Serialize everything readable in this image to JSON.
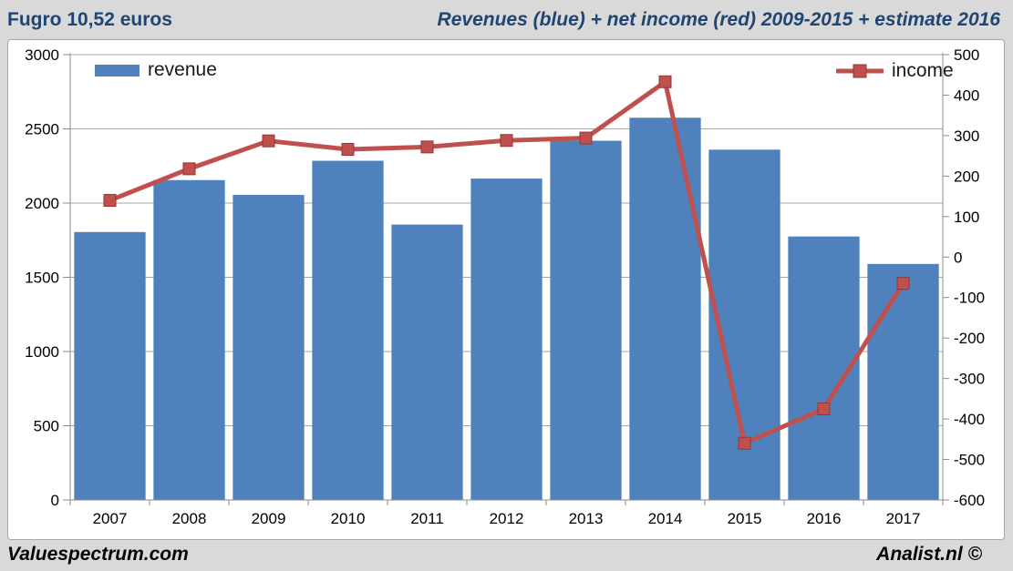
{
  "header": {
    "left_title": "Fugro 10,52 euros",
    "right_title": "Revenues (blue) + net income (red) 2009-2015 + estimate 2016"
  },
  "footer": {
    "left_brand": "Valuespectrum.com",
    "right_brand": "Analist.nl ©"
  },
  "colors": {
    "bar_blue": "#4f81bd",
    "line_red": "#c0504d",
    "marker_edge_red": "#943634",
    "page_background": "#d9d9d9",
    "plot_background": "#ffffff",
    "gridline": "#a6a6a6",
    "axis": "#8c8c8c",
    "title_navy": "#1f4572"
  },
  "chart_data": {
    "type": "bar",
    "title": "Revenues (blue) + net income (red) 2009-2015 + estimate 2016",
    "categories": [
      "2007",
      "2008",
      "2009",
      "2010",
      "2011",
      "2012",
      "2013",
      "2014",
      "2015",
      "2016",
      "2017"
    ],
    "series": [
      {
        "name": "revenue",
        "type": "bar",
        "axis": "left",
        "color": "#4f81bd",
        "values": [
          1805,
          2155,
          2055,
          2285,
          1855,
          2165,
          2420,
          2575,
          2360,
          1775,
          1590
        ]
      },
      {
        "name": "income",
        "type": "line",
        "axis": "right",
        "color": "#c0504d",
        "values": [
          140,
          218,
          287,
          266,
          272,
          288,
          294,
          433,
          -460,
          -375,
          -65
        ]
      }
    ],
    "left_axis": {
      "min": 0,
      "max": 3000,
      "step": 500,
      "ticks": [
        "0",
        "500",
        "1000",
        "1500",
        "2000",
        "2500",
        "3000"
      ]
    },
    "right_axis": {
      "min": -600,
      "max": 500,
      "step": 100,
      "ticks": [
        "-600",
        "-500",
        "-400",
        "-300",
        "-200",
        "-100",
        "0",
        "100",
        "200",
        "300",
        "400",
        "500"
      ]
    },
    "grid": "horizontal gridlines at left-axis 500 steps",
    "legend_position": "top inside plot (revenue left, income right)",
    "xlabel": "",
    "ylabel_left": "",
    "ylabel_right": ""
  }
}
